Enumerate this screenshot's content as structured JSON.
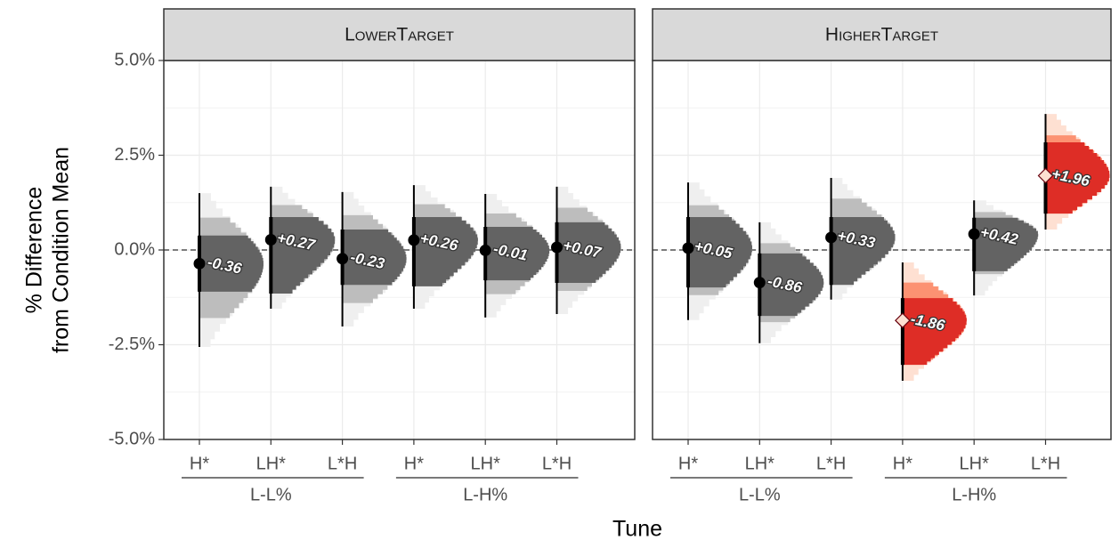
{
  "chart_data": {
    "type": "halfeye",
    "xlabel": "Tune",
    "ylabel": [
      "% Difference",
      "from Condition Mean"
    ],
    "ylim": [
      -5,
      5
    ],
    "yticks": [
      {
        "value": -5,
        "label": "-5.0%"
      },
      {
        "value": -2.5,
        "label": "-2.5%"
      },
      {
        "value": 0,
        "label": "0.0%"
      },
      {
        "value": 2.5,
        "label": "2.5%"
      },
      {
        "value": 5,
        "label": "5.0%"
      }
    ],
    "reference_line": 0,
    "grid": true,
    "colors": {
      "normal": [
        "#efefef",
        "#bdbdbd",
        "#636363"
      ],
      "highlight": [
        "#fee0d2",
        "#fc9272",
        "#de2d26"
      ]
    },
    "facets": [
      {
        "title": "LowerTarget",
        "groups": [
          {
            "name": "L-L%",
            "categories": [
              "H*",
              "LH*",
              "L*H"
            ]
          },
          {
            "name": "L-H%",
            "categories": [
              "H*",
              "LH*",
              "L*H"
            ]
          }
        ],
        "values": [
          -0.36,
          0.27,
          -0.23,
          0.26,
          -0.01,
          0.07
        ],
        "value_labels": [
          "-0.36",
          "+0.27",
          "-0.23",
          "+0.26",
          "-0.01",
          "+0.07"
        ],
        "lower_66": [
          -1.1,
          -1.15,
          -0.92,
          -0.96,
          -0.8,
          -0.87
        ],
        "upper_66": [
          0.38,
          0.87,
          0.54,
          0.87,
          0.61,
          0.73
        ],
        "lower_95": [
          -2.56,
          -1.55,
          -2.02,
          -1.55,
          -1.78,
          -1.69
        ],
        "upper_95": [
          1.5,
          1.67,
          1.53,
          1.71,
          1.48,
          1.67
        ],
        "highlight": [
          false,
          false,
          false,
          false,
          false,
          false
        ]
      },
      {
        "title": "HigherTarget",
        "groups": [
          {
            "name": "L-L%",
            "categories": [
              "H*",
              "LH*",
              "L*H"
            ]
          },
          {
            "name": "L-H%",
            "categories": [
              "H*",
              "LH*",
              "L*H"
            ]
          }
        ],
        "values": [
          0.05,
          -0.86,
          0.33,
          -1.86,
          0.42,
          1.96
        ],
        "value_labels": [
          "+0.05",
          "-0.86",
          "+0.33",
          "-1.86",
          "+0.42",
          "+1.96"
        ],
        "lower_66": [
          -0.99,
          -1.74,
          -0.92,
          -3.03,
          -0.56,
          0.96
        ],
        "upper_66": [
          0.87,
          -0.09,
          0.87,
          -1.27,
          0.85,
          2.84
        ],
        "lower_95": [
          -1.85,
          -2.46,
          -1.31,
          -3.45,
          -1.2,
          0.54
        ],
        "upper_95": [
          1.78,
          0.73,
          1.9,
          -0.33,
          1.31,
          3.59
        ],
        "highlight": [
          false,
          false,
          false,
          true,
          false,
          true
        ]
      }
    ]
  }
}
